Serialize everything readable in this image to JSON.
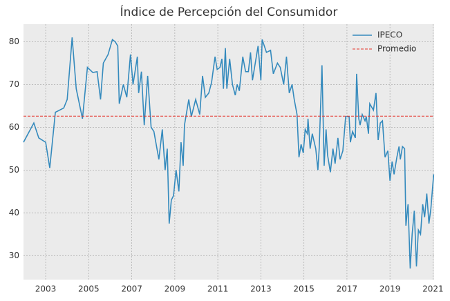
{
  "chart_data": {
    "type": "line",
    "title": "Índice de Percepción del Consumidor",
    "x": [
      2001.97,
      2002.45,
      2002.68,
      2003.0,
      2003.19,
      2003.45,
      2003.84,
      2004.0,
      2004.23,
      2004.42,
      2004.71,
      2004.94,
      2005.19,
      2005.39,
      2005.55,
      2005.68,
      2005.9,
      2006.1,
      2006.23,
      2006.35,
      2006.42,
      2006.61,
      2006.77,
      2006.94,
      2007.06,
      2007.26,
      2007.32,
      2007.45,
      2007.58,
      2007.74,
      2007.9,
      2008.03,
      2008.26,
      2008.42,
      2008.55,
      2008.65,
      2008.74,
      2008.84,
      2008.94,
      2009.06,
      2009.19,
      2009.29,
      2009.39,
      2009.45,
      2009.65,
      2009.77,
      2009.97,
      2010.16,
      2010.29,
      2010.42,
      2010.58,
      2010.71,
      2010.87,
      2010.97,
      2011.1,
      2011.19,
      2011.26,
      2011.35,
      2011.42,
      2011.55,
      2011.68,
      2011.81,
      2011.9,
      2012.0,
      2012.16,
      2012.29,
      2012.42,
      2012.52,
      2012.61,
      2012.74,
      2012.87,
      2013.0,
      2013.06,
      2013.26,
      2013.45,
      2013.58,
      2013.77,
      2013.9,
      2014.06,
      2014.19,
      2014.32,
      2014.45,
      2014.55,
      2014.68,
      2014.77,
      2014.87,
      2014.97,
      2015.06,
      2015.16,
      2015.19,
      2015.29,
      2015.39,
      2015.55,
      2015.65,
      2015.71,
      2015.84,
      2015.94,
      2016.03,
      2016.1,
      2016.23,
      2016.35,
      2016.45,
      2016.58,
      2016.68,
      2016.81,
      2016.94,
      2017.1,
      2017.16,
      2017.26,
      2017.39,
      2017.45,
      2017.55,
      2017.61,
      2017.71,
      2017.84,
      2017.9,
      2018.0,
      2018.06,
      2018.23,
      2018.35,
      2018.45,
      2018.55,
      2018.65,
      2018.77,
      2018.9,
      2019.0,
      2019.1,
      2019.19,
      2019.32,
      2019.42,
      2019.48,
      2019.58,
      2019.68,
      2019.74,
      2019.84,
      2019.94,
      2020.03,
      2020.13,
      2020.23,
      2020.32,
      2020.42,
      2020.52,
      2020.61,
      2020.71,
      2020.81,
      2020.9,
      2021.03
    ],
    "series": [
      {
        "name": "IPECO",
        "color": "#348abd",
        "values": [
          56.5,
          61,
          57.5,
          56.5,
          50.5,
          63.5,
          64.5,
          66.5,
          81,
          69,
          62,
          74,
          72.8,
          73,
          66.5,
          75,
          77,
          80.5,
          80,
          79,
          65.5,
          70,
          67,
          77,
          70,
          76.5,
          68,
          73,
          60.5,
          72,
          60,
          59,
          52.5,
          59.5,
          50,
          55,
          37.5,
          43,
          44,
          50,
          45,
          56.5,
          51,
          60.5,
          66.5,
          62.5,
          66.5,
          63,
          72,
          67,
          68,
          70.5,
          76.5,
          73.5,
          74,
          76,
          69,
          78.5,
          69,
          76,
          70,
          67.5,
          70,
          68.5,
          76.5,
          73,
          73,
          77.5,
          71,
          75,
          79,
          71,
          80.5,
          77.5,
          78,
          72.5,
          75,
          74,
          70,
          76.5,
          68,
          70,
          66.5,
          63,
          53,
          56,
          54,
          59.5,
          58.5,
          62,
          55,
          58.5,
          55,
          50,
          55,
          74.5,
          51,
          59.5,
          53.5,
          49.5,
          55,
          51.5,
          57.5,
          52.5,
          54.5,
          62.5,
          62.5,
          56.5,
          59,
          57.5,
          72.5,
          62,
          60.5,
          63,
          61.5,
          62.5,
          58.5,
          65.5,
          64,
          68,
          57,
          61,
          61.5,
          53,
          54.5,
          47.5,
          52,
          49,
          53,
          55.5,
          52.5,
          55.5,
          55,
          37,
          42,
          27,
          35,
          40.5,
          27.5,
          36,
          35,
          42,
          39,
          44.5,
          37.5,
          41,
          49
        ]
      }
    ],
    "hlines": [
      {
        "name": "Promedio",
        "value": 62.6,
        "color": "#e5332a"
      }
    ],
    "xlim": [
      2001.97,
      2021.05
    ],
    "xticks": [
      2003,
      2005,
      2007,
      2009,
      2011,
      2013,
      2015,
      2017,
      2019,
      2021
    ],
    "ylim": [
      24.4,
      84.1
    ],
    "yticks": [
      30,
      40,
      50,
      60,
      70,
      80
    ],
    "grid": true,
    "legend": "upper right"
  }
}
